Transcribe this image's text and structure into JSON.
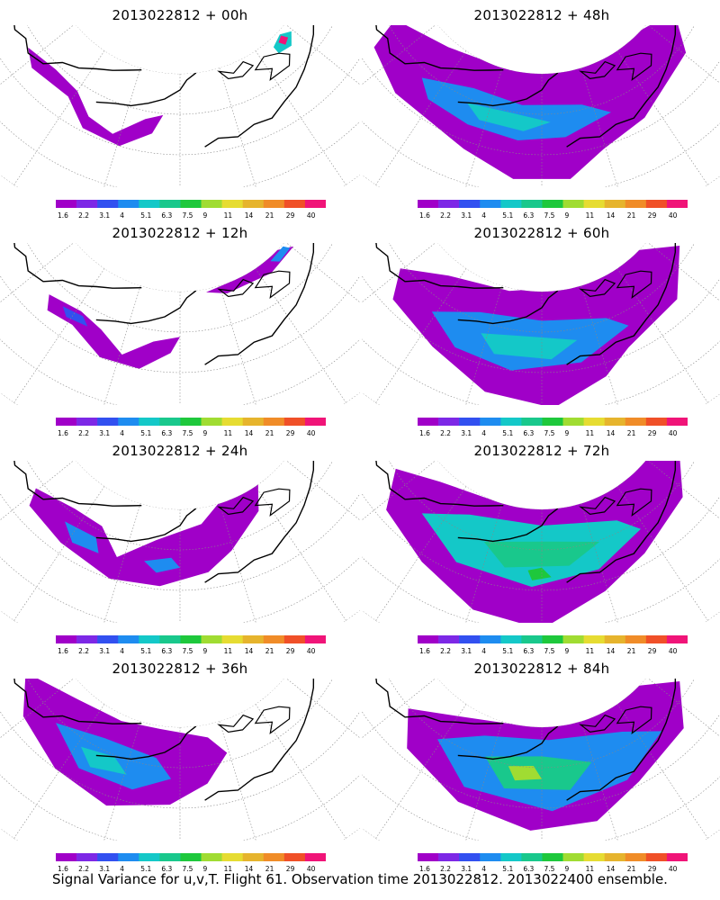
{
  "panels": [
    {
      "title": "2013022812 + 00h"
    },
    {
      "title": "2013022812 + 48h"
    },
    {
      "title": "2013022812 + 12h"
    },
    {
      "title": "2013022812 + 60h"
    },
    {
      "title": "2013022812 + 24h"
    },
    {
      "title": "2013022812 + 72h"
    },
    {
      "title": "2013022812 + 36h"
    },
    {
      "title": "2013022812 + 84h"
    }
  ],
  "colorbar": {
    "labels": [
      "1.6",
      "2.2",
      "3.1",
      "4",
      "5.1",
      "6.3",
      "7.5",
      "9",
      "11",
      "14",
      "21",
      "29",
      "40"
    ],
    "colors": [
      "#a000c8",
      "#7d28e6",
      "#3250f0",
      "#1e8cf0",
      "#14c8c8",
      "#19c88c",
      "#1ec83c",
      "#a0dc32",
      "#e6dc32",
      "#e6b42d",
      "#f08c28",
      "#f05028",
      "#f01478"
    ]
  },
  "caption": "Signal Variance for u,v,T. Flight 61. Observation time 2013022812. 2013022400 ensemble."
}
